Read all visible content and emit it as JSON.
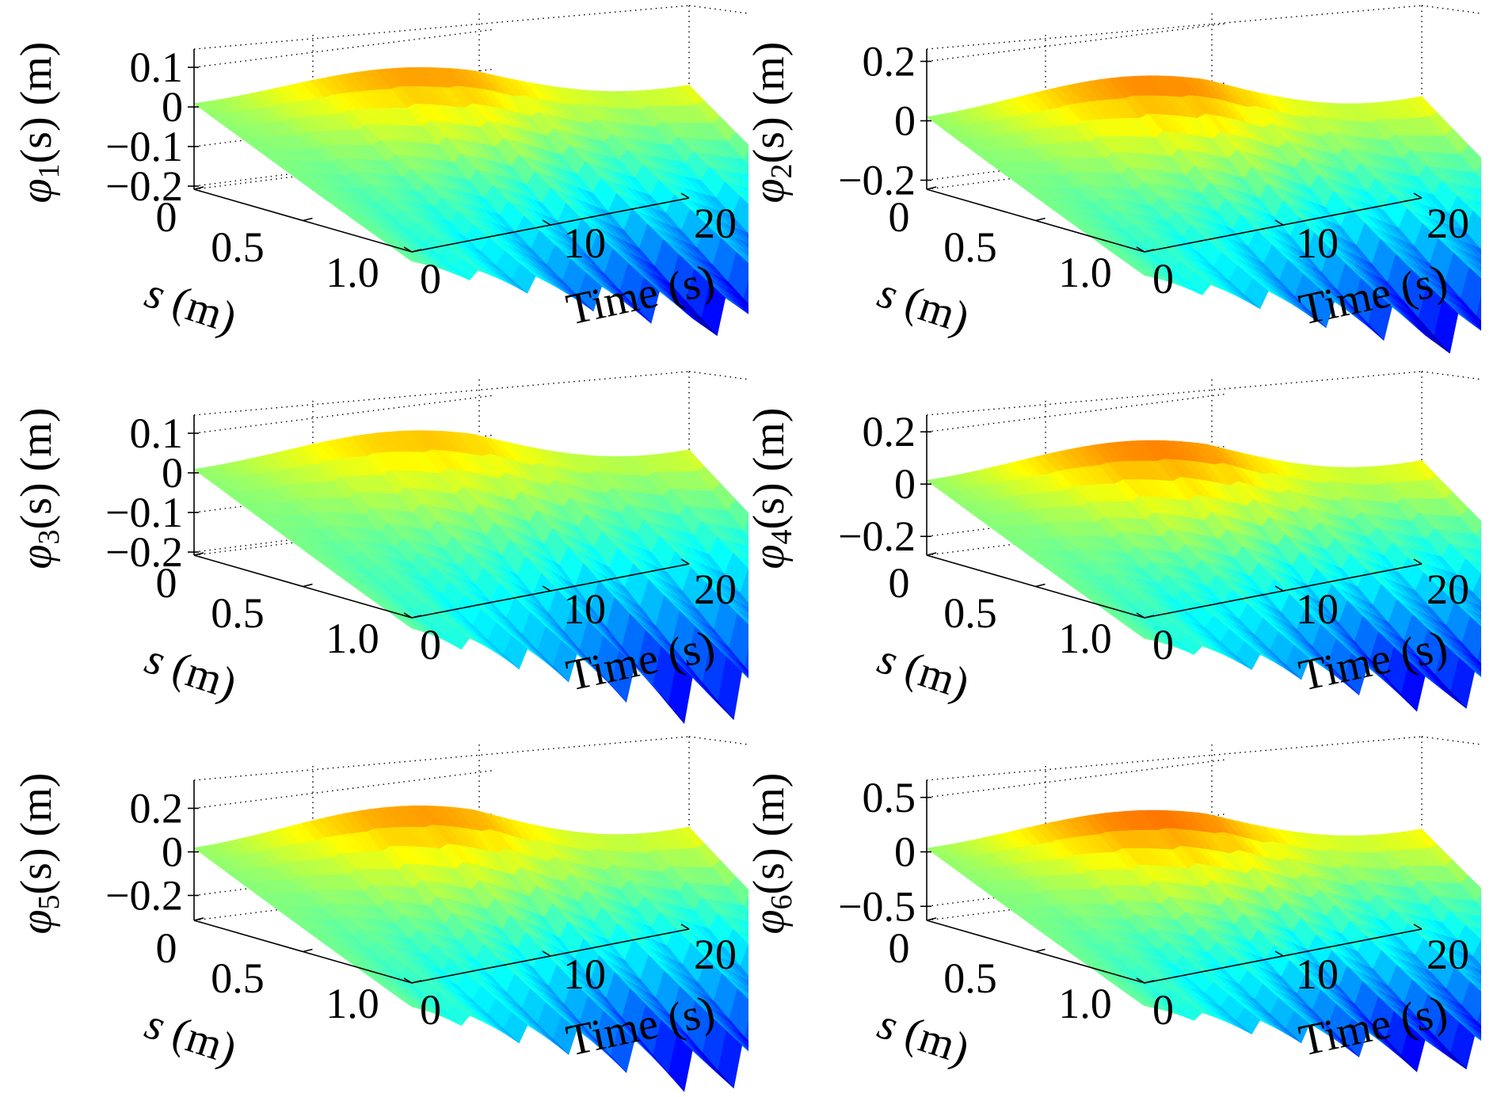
{
  "chart_data": [
    {
      "type": "surface",
      "ylabel": "φ1(s) (m)",
      "ylabel_parts": {
        "sym": "φ",
        "sub": "1",
        "arg": "(s) (m)"
      },
      "slabel": "s (m)",
      "tlabel": "Time (s)",
      "zticks": [
        "0.1",
        "0",
        "−0.1",
        "−0.2"
      ],
      "zticks_values": [
        0.1,
        0,
        -0.1,
        -0.2
      ],
      "zlim": [
        -0.2,
        0.13
      ],
      "sticks": [
        "0",
        "0.5",
        "1.0"
      ],
      "tticks": [
        "0",
        "10",
        "20"
      ],
      "srange": [
        0,
        1.0
      ],
      "trange": [
        0,
        20
      ],
      "surface": {
        "peak": 0.13,
        "trough": -0.2,
        "ridges": 8
      }
    },
    {
      "type": "surface",
      "ylabel": "φ2(s) (m)",
      "ylabel_parts": {
        "sym": "φ",
        "sub": "2",
        "arg": "(s) (m)"
      },
      "slabel": "s (m)",
      "tlabel": "Time (s)",
      "zticks": [
        "0.2",
        "0",
        "−0.2"
      ],
      "zticks_values": [
        0.2,
        0,
        -0.2
      ],
      "zlim": [
        -0.22,
        0.22
      ],
      "sticks": [
        "0",
        "0.5",
        "1.0"
      ],
      "tticks": [
        "0",
        "10",
        "20"
      ],
      "srange": [
        0,
        1.0
      ],
      "trange": [
        0,
        20
      ],
      "surface": {
        "peak": 0.2,
        "trough": -0.28,
        "ridges": 8
      }
    },
    {
      "type": "surface",
      "ylabel": "φ3(s) (m)",
      "ylabel_parts": {
        "sym": "φ",
        "sub": "3",
        "arg": "(s) (m)"
      },
      "slabel": "s (m)",
      "tlabel": "Time (s)",
      "zticks": [
        "0.1",
        "0",
        "−0.1",
        "−0.2"
      ],
      "zticks_values": [
        0.1,
        0,
        -0.1,
        -0.2
      ],
      "zlim": [
        -0.2,
        0.13
      ],
      "sticks": [
        "0",
        "0.5",
        "1.0"
      ],
      "tticks": [
        "0",
        "10",
        "20"
      ],
      "srange": [
        0,
        1.0
      ],
      "trange": [
        0,
        20
      ],
      "surface": {
        "peak": 0.14,
        "trough": -0.26,
        "ridges": 9
      }
    },
    {
      "type": "surface",
      "ylabel": "φ4(s) (m)",
      "ylabel_parts": {
        "sym": "φ",
        "sub": "4",
        "arg": "(s) (m)"
      },
      "slabel": "s (m)",
      "tlabel": "Time (s)",
      "zticks": [
        "0.2",
        "0",
        "−0.2"
      ],
      "zticks_values": [
        0.2,
        0,
        -0.2
      ],
      "zlim": [
        -0.26,
        0.24
      ],
      "sticks": [
        "0",
        "0.5",
        "1.0"
      ],
      "tticks": [
        "0",
        "10",
        "20"
      ],
      "srange": [
        0,
        1.0
      ],
      "trange": [
        0,
        20
      ],
      "surface": {
        "peak": 0.22,
        "trough": -0.3,
        "ridges": 9
      }
    },
    {
      "type": "surface",
      "ylabel": "φ5(s) (m)",
      "ylabel_parts": {
        "sym": "φ",
        "sub": "5",
        "arg": "(s) (m)"
      },
      "slabel": "s (m)",
      "tlabel": "Time (s)",
      "zticks": [
        "0.2",
        "0",
        "−0.2"
      ],
      "zticks_values": [
        0.2,
        0,
        -0.2
      ],
      "zlim": [
        -0.3,
        0.3
      ],
      "sticks": [
        "0",
        "0.5",
        "1.0"
      ],
      "tticks": [
        "0",
        "10",
        "20"
      ],
      "srange": [
        0,
        1.0
      ],
      "trange": [
        0,
        20
      ],
      "surface": {
        "peak": 0.28,
        "trough": -0.42,
        "ridges": 9
      }
    },
    {
      "type": "surface",
      "ylabel": "φ6(s) (m)",
      "ylabel_parts": {
        "sym": "φ",
        "sub": "6",
        "arg": "(s) (m)"
      },
      "slabel": "s (m)",
      "tlabel": "Time (s)",
      "zticks": [
        "0.5",
        "0",
        "−0.5"
      ],
      "zticks_values": [
        0.5,
        0,
        -0.5
      ],
      "zlim": [
        -0.6,
        0.6
      ],
      "sticks": [
        "0",
        "0.5",
        "1.0"
      ],
      "tticks": [
        "0",
        "10",
        "20"
      ],
      "srange": [
        0,
        1.0
      ],
      "trange": [
        0,
        20
      ],
      "surface": {
        "peak": 0.5,
        "trough": -0.65,
        "ridges": 9
      }
    }
  ],
  "colormap": [
    "#00008f",
    "#0000ff",
    "#0080ff",
    "#00ffff",
    "#80ff80",
    "#ffff00",
    "#ff8000",
    "#ff0000",
    "#800000"
  ]
}
